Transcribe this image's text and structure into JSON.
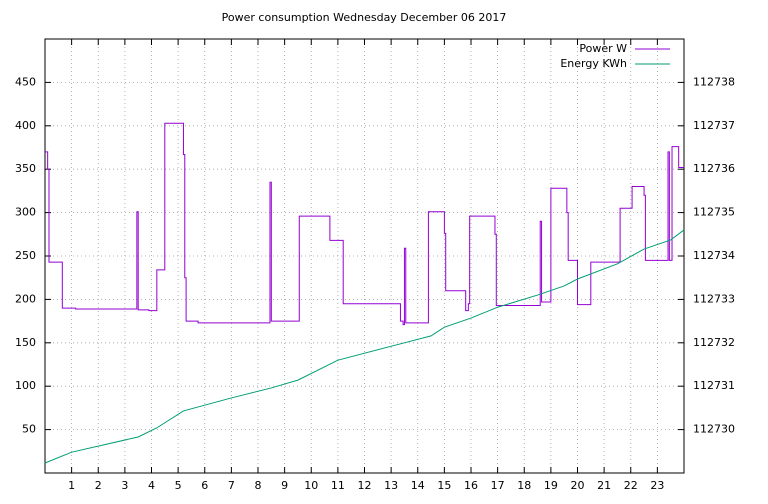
{
  "chart_data": {
    "type": "line",
    "title": "Power consumption Wednesday December 06 2017",
    "xlim": [
      0,
      24
    ],
    "xticks": [
      1,
      2,
      3,
      4,
      5,
      6,
      7,
      8,
      9,
      10,
      11,
      12,
      13,
      14,
      15,
      16,
      17,
      18,
      19,
      20,
      21,
      22,
      23
    ],
    "ylim": [
      0,
      500
    ],
    "yticks": [
      50,
      100,
      150,
      200,
      250,
      300,
      350,
      400,
      450
    ],
    "y2lim": [
      112729,
      112739
    ],
    "y2ticks": [
      112730,
      112731,
      112732,
      112733,
      112734,
      112735,
      112736,
      112737,
      112738
    ],
    "grid": true,
    "legend": "top-right",
    "series": [
      {
        "name": "Power W",
        "color": "#9400d3",
        "x": [
          0,
          0.1,
          0.1,
          0.15,
          0.15,
          0.65,
          0.65,
          1.15,
          1.15,
          3.45,
          3.45,
          3.5,
          3.5,
          3.9,
          3.9,
          4.2,
          4.2,
          4.5,
          4.5,
          5.2,
          5.2,
          5.25,
          5.25,
          5.3,
          5.3,
          5.75,
          5.75,
          8.45,
          8.45,
          8.5,
          8.5,
          9.55,
          9.55,
          10.7,
          10.7,
          11.2,
          11.2,
          13.35,
          13.35,
          13.45,
          13.45,
          13.5,
          13.5,
          13.55,
          13.55,
          14.4,
          14.4,
          15.0,
          15.0,
          15.05,
          15.05,
          15.8,
          15.8,
          15.9,
          15.9,
          15.95,
          15.95,
          16.9,
          16.9,
          16.95,
          16.95,
          18.6,
          18.6,
          18.65,
          18.65,
          19.0,
          19.0,
          19.6,
          19.6,
          19.65,
          19.65,
          20.0,
          20.0,
          20.5,
          20.5,
          21.6,
          21.6,
          22.05,
          22.05,
          22.5,
          22.5,
          22.55,
          22.55,
          23.4,
          23.4,
          23.45,
          23.45,
          23.55,
          23.55,
          23.8,
          23.8,
          24
        ],
        "values": [
          370,
          370,
          350,
          350,
          243,
          243,
          190,
          190,
          189,
          189,
          301,
          301,
          188,
          188,
          187,
          187,
          234,
          234,
          403,
          403,
          367,
          367,
          225,
          225,
          175,
          175,
          173,
          173,
          335,
          335,
          175,
          175,
          296,
          296,
          268,
          268,
          195,
          195,
          175,
          175,
          171,
          171,
          259,
          259,
          173,
          173,
          301,
          301,
          276,
          276,
          210,
          210,
          187,
          187,
          195,
          195,
          296,
          296,
          275,
          275,
          193,
          193,
          290,
          290,
          197,
          197,
          328,
          328,
          300,
          300,
          245,
          245,
          194,
          194,
          243,
          243,
          305,
          305,
          330,
          330,
          320,
          320,
          245,
          245,
          370,
          370,
          245,
          245,
          376,
          376,
          352,
          352
        ]
      },
      {
        "name": "Energy KWh",
        "color": "#009e73",
        "axis": "y2",
        "x": [
          0,
          1,
          3.5,
          4.2,
          5.2,
          7,
          8.5,
          9.5,
          11,
          13.5,
          14.5,
          15,
          16,
          17,
          18.5,
          19.5,
          20,
          21.5,
          22.5,
          23.5,
          24
        ],
        "values": [
          112729.23,
          112729.48,
          112729.83,
          112730.04,
          112730.43,
          112730.73,
          112730.96,
          112731.14,
          112731.6,
          112732.0,
          112732.16,
          112732.36,
          112732.57,
          112732.82,
          112733.1,
          112733.31,
          112733.47,
          112733.82,
          112734.16,
          112734.37,
          112734.6
        ]
      }
    ]
  }
}
